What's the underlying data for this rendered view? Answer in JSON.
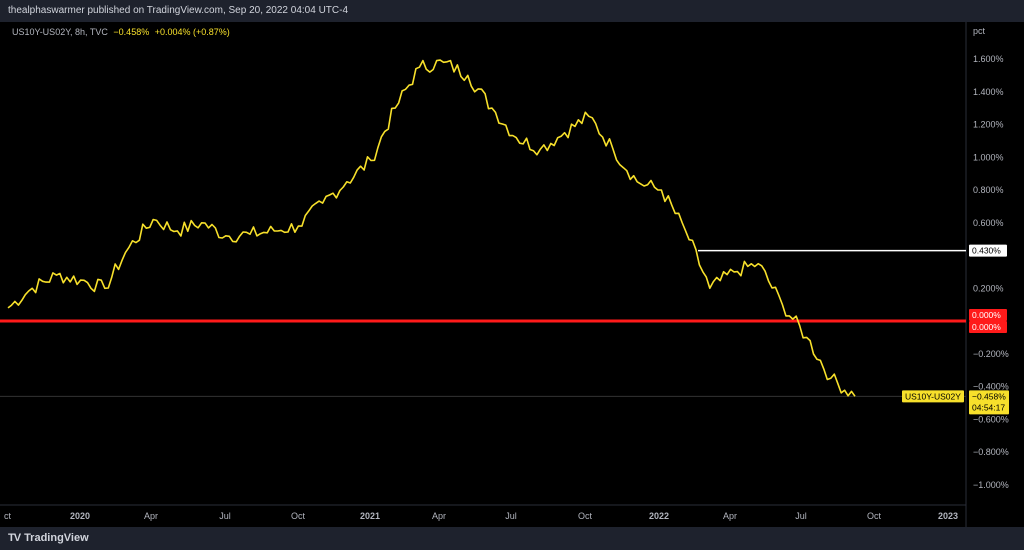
{
  "header": {
    "published_by": "thealphaswarmer published on TradingView.com, Sep 20, 2022 04:04 UTC-4"
  },
  "legend": {
    "symbol": "US10Y-US02Y, 8h, TVC",
    "last": "−0.458%",
    "change": "+0.004% (+0.87%)"
  },
  "axis": {
    "unit": "pct",
    "y_ticks": [
      "1.600%",
      "1.400%",
      "1.200%",
      "1.000%",
      "0.800%",
      "0.600%",
      "0.200%",
      "−0.200%",
      "−0.400%",
      "−0.600%",
      "−0.800%",
      "−1.000%"
    ],
    "x_ticks": [
      "ct",
      "2020",
      "Apr",
      "Jul",
      "Oct",
      "2021",
      "Apr",
      "Jul",
      "Oct",
      "2022",
      "Apr",
      "Jul",
      "Oct",
      "2023"
    ]
  },
  "labels": {
    "white_line": "0.430%",
    "red_line_a": "0.000%",
    "red_line_b": "0.000%",
    "symbol_tag": "US10Y-US02Y",
    "price_tag": "−0.458%",
    "countdown": "04:54:17"
  },
  "brand": {
    "name": "TradingView",
    "logo": "TV"
  },
  "colors": {
    "series": "#f7e02b",
    "red_line": "#ff1a1a",
    "white_line": "#ffffff",
    "background": "#000000"
  },
  "chart_data": {
    "type": "line",
    "series": [
      {
        "name": "US10Y-US02Y",
        "x": [
          "2019-10",
          "2019-11",
          "2019-12",
          "2020-01",
          "2020-02",
          "2020-03",
          "2020-04",
          "2020-05",
          "2020-06",
          "2020-07",
          "2020-08",
          "2020-09",
          "2020-10",
          "2020-11",
          "2020-12",
          "2021-01",
          "2021-02",
          "2021-03",
          "2021-04",
          "2021-05",
          "2021-06",
          "2021-07",
          "2021-08",
          "2021-09",
          "2021-10",
          "2021-11",
          "2021-12",
          "2022-01",
          "2022-02",
          "2022-03",
          "2022-04",
          "2022-05",
          "2022-06",
          "2022-07",
          "2022-08",
          "2022-09"
        ],
        "values": [
          0.08,
          0.2,
          0.28,
          0.25,
          0.2,
          0.45,
          0.62,
          0.55,
          0.6,
          0.52,
          0.53,
          0.55,
          0.58,
          0.72,
          0.85,
          0.98,
          1.3,
          1.55,
          1.58,
          1.5,
          1.3,
          1.12,
          1.05,
          1.15,
          1.25,
          1.05,
          0.85,
          0.8,
          0.55,
          0.2,
          0.3,
          0.35,
          0.1,
          -0.1,
          -0.35,
          -0.46
        ]
      }
    ],
    "y_range_pct": [
      -1.1,
      1.75
    ],
    "horizontal_lines": [
      {
        "value": 0.43,
        "color": "white"
      },
      {
        "value": 0.0,
        "color": "red"
      }
    ],
    "grid": false,
    "price_axis": "right"
  }
}
